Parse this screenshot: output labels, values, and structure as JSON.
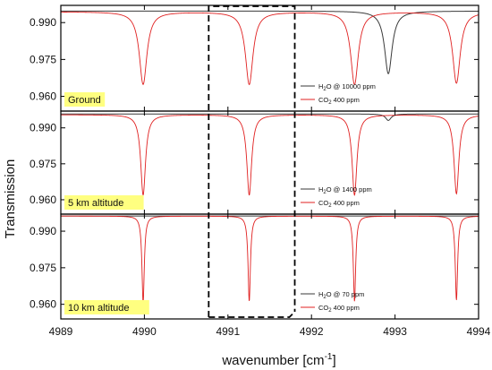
{
  "chart_data": {
    "type": "line",
    "xlabel": "wavenumber [cm",
    "xlabel_sup": "-1",
    "xlabel_close": "]",
    "ylabel": "Transmission",
    "xlim": [
      4989,
      4994
    ],
    "x_ticks": [
      "4989",
      "4990",
      "4991",
      "4992",
      "4993",
      "4994"
    ],
    "y_ticks": [
      "0.990",
      "0.975",
      "0.960"
    ],
    "ylim": [
      0.954,
      0.997
    ],
    "highlight_region": [
      4990.77,
      4991.8
    ],
    "colors": {
      "h2o": "#3a3a3a",
      "co2": "#e02020",
      "tag_bg": "#ffff80",
      "box": "#000000"
    },
    "panels": [
      {
        "tag": "Ground",
        "legend": [
          {
            "prefix": "H",
            "sub": "2",
            "suffix": "O @ 10000 ppm",
            "color": "#3a3a3a"
          },
          {
            "prefix": "CO",
            "sub": "2",
            "suffix": " 400 ppm",
            "color": "#e02020"
          }
        ],
        "series": [
          {
            "species": "H2O",
            "baseline": 0.9947,
            "lines": [
              {
                "center": 4992.92,
                "depth": 0.0255,
                "width": 0.055
              }
            ]
          },
          {
            "species": "CO2",
            "baseline": 0.9944,
            "lines": [
              {
                "center": 4989.985,
                "depth": 0.0295,
                "width": 0.055
              },
              {
                "center": 4991.255,
                "depth": 0.0295,
                "width": 0.055
              },
              {
                "center": 4992.515,
                "depth": 0.0295,
                "width": 0.055
              },
              {
                "center": 4993.735,
                "depth": 0.029,
                "width": 0.055
              }
            ]
          }
        ]
      },
      {
        "tag": "5 km altitude",
        "legend": [
          {
            "prefix": "H",
            "sub": "2",
            "suffix": "O @ 1400 ppm",
            "color": "#3a3a3a"
          },
          {
            "prefix": "CO",
            "sub": "2",
            "suffix": " 400 ppm",
            "color": "#e02020"
          }
        ],
        "series": [
          {
            "species": "H2O",
            "baseline": 0.9958,
            "lines": [
              {
                "center": 4992.92,
                "depth": 0.0027,
                "width": 0.04
              }
            ]
          },
          {
            "species": "CO2",
            "baseline": 0.9955,
            "lines": [
              {
                "center": 4989.985,
                "depth": 0.0335,
                "width": 0.035
              },
              {
                "center": 4991.255,
                "depth": 0.0335,
                "width": 0.035
              },
              {
                "center": 4992.515,
                "depth": 0.0335,
                "width": 0.035
              },
              {
                "center": 4993.735,
                "depth": 0.033,
                "width": 0.035
              }
            ]
          }
        ]
      },
      {
        "tag": "10 km altitude",
        "legend": [
          {
            "prefix": "H",
            "sub": "2",
            "suffix": "O @ 70 ppm",
            "color": "#3a3a3a"
          },
          {
            "prefix": "CO",
            "sub": "2",
            "suffix": " 400 ppm",
            "color": "#e02020"
          }
        ],
        "series": [
          {
            "species": "H2O",
            "baseline": 0.9962,
            "lines": []
          },
          {
            "species": "CO2",
            "baseline": 0.9962,
            "lines": [
              {
                "center": 4989.985,
                "depth": 0.0355,
                "width": 0.017
              },
              {
                "center": 4991.255,
                "depth": 0.035,
                "width": 0.017
              },
              {
                "center": 4992.515,
                "depth": 0.035,
                "width": 0.017
              },
              {
                "center": 4993.735,
                "depth": 0.0345,
                "width": 0.017
              }
            ]
          }
        ]
      }
    ]
  }
}
